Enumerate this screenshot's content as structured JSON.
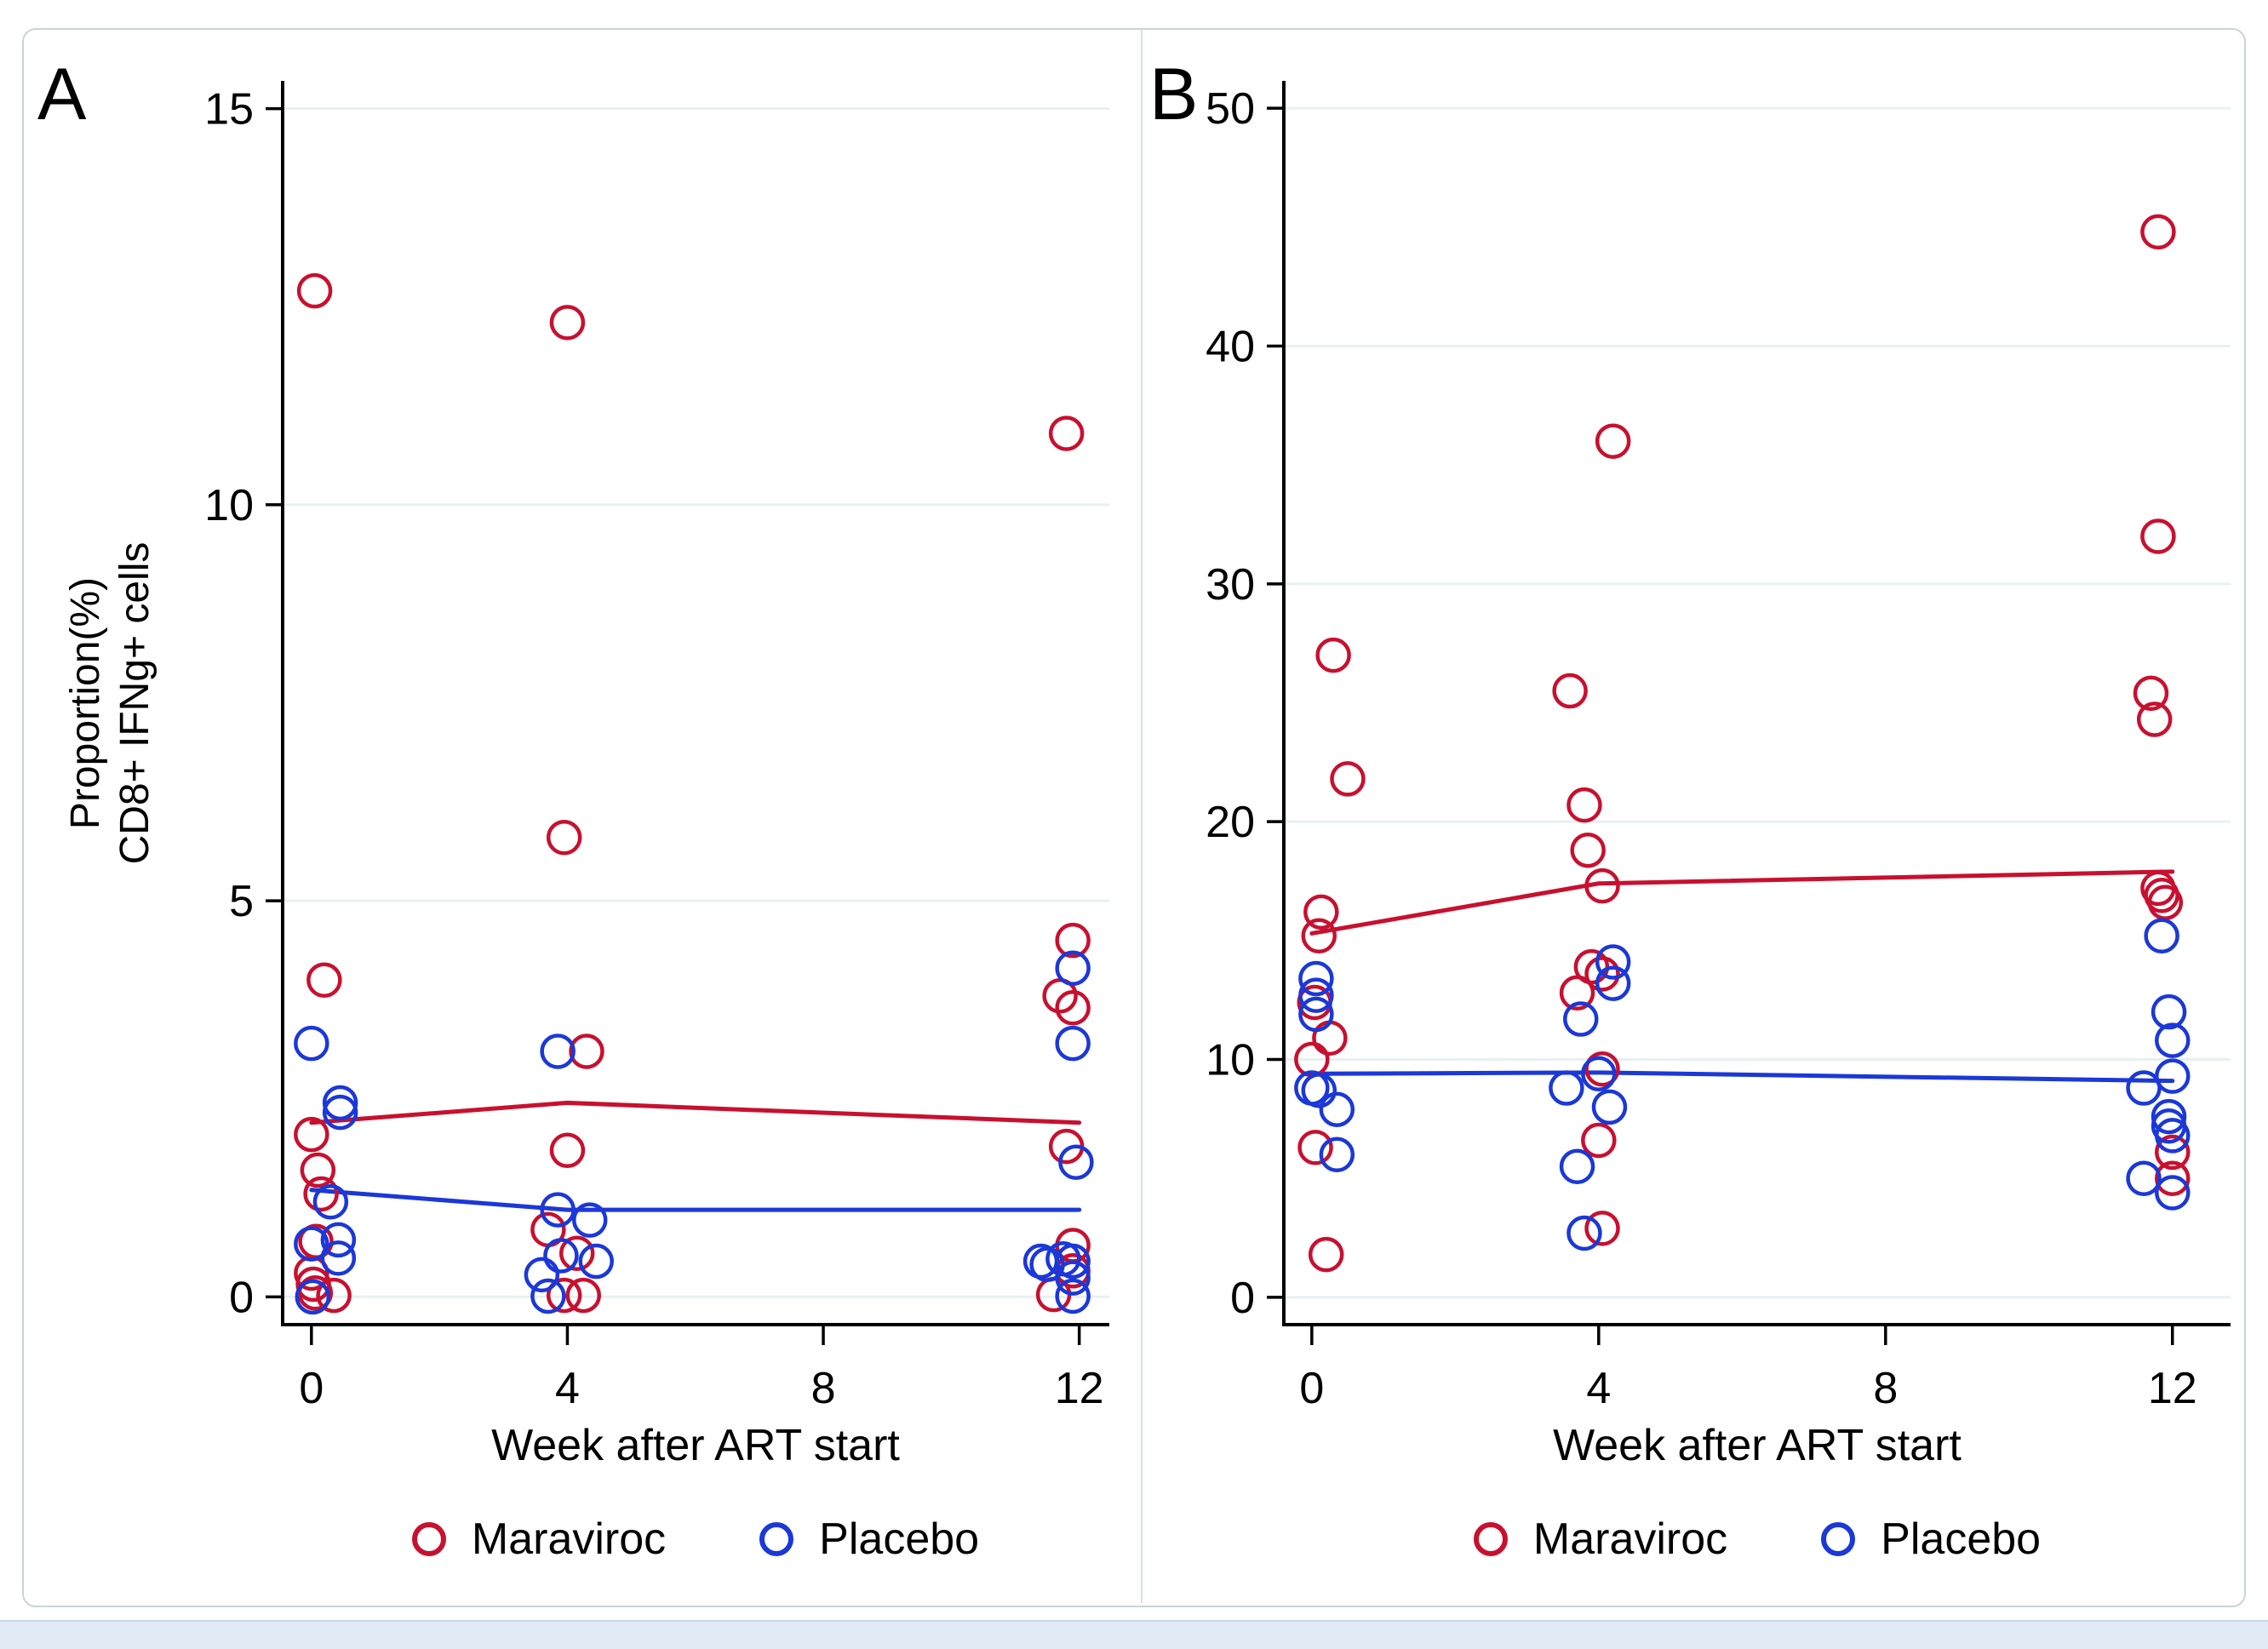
{
  "figure": {
    "panel_letters": [
      "A",
      "B"
    ],
    "xlabel": "Week after ART start",
    "ylabel_lines": [
      "Proportion(%)",
      "CD8+ IFNg+ cells"
    ],
    "legend": {
      "items": [
        {
          "label": "Maraviroc",
          "color": "#C8102F"
        },
        {
          "label": "Placebo",
          "color": "#1B38D8"
        }
      ]
    },
    "colors": {
      "maraviroc": "#C8102F",
      "placebo": "#1B38D8",
      "gridline": "#e7f0f2",
      "axis": "#000000",
      "border": "#cbd3d7",
      "bottom_strip": "#e0eaf4"
    }
  },
  "chart_data": [
    {
      "type": "scatter",
      "panel": "A",
      "xlabel": "Week after ART start",
      "ylabel": "Proportion(%) CD8+ IFNg+ cells",
      "xticks": [
        0,
        4,
        8,
        12
      ],
      "yticks": [
        0,
        5,
        10,
        15
      ],
      "xlim": [
        -0.45,
        12.47
      ],
      "ylim": [
        -0.35,
        15.35
      ],
      "grid": "horizontal",
      "legend_position": "bottom",
      "series": [
        {
          "name": "Maraviroc",
          "color": "#C8102F",
          "points": [
            [
              0.05,
              12.7
            ],
            [
              0.2,
              4.0
            ],
            [
              0.0,
              2.05
            ],
            [
              0.1,
              1.6
            ],
            [
              0.15,
              1.3
            ],
            [
              0.07,
              0.7
            ],
            [
              0.0,
              0.3
            ],
            [
              0.03,
              0.16
            ],
            [
              0.06,
              0.05
            ],
            [
              0.35,
              0.02
            ],
            [
              4.0,
              12.3
            ],
            [
              3.95,
              5.8
            ],
            [
              4.3,
              3.1
            ],
            [
              4.0,
              1.85
            ],
            [
              3.7,
              0.85
            ],
            [
              4.15,
              0.55
            ],
            [
              3.95,
              0.02
            ],
            [
              4.25,
              0.02
            ],
            [
              11.8,
              10.9
            ],
            [
              11.9,
              4.5
            ],
            [
              11.7,
              3.8
            ],
            [
              11.9,
              3.65
            ],
            [
              11.8,
              1.9
            ],
            [
              11.9,
              0.65
            ],
            [
              11.9,
              0.33
            ],
            [
              11.6,
              0.03
            ]
          ]
        },
        {
          "name": "Placebo",
          "color": "#1B38D8",
          "points": [
            [
              0.0,
              3.2
            ],
            [
              0.45,
              2.45
            ],
            [
              0.45,
              2.33
            ],
            [
              0.3,
              1.2
            ],
            [
              0.42,
              0.72
            ],
            [
              0.0,
              0.67
            ],
            [
              0.42,
              0.49
            ],
            [
              0.02,
              0.0
            ],
            [
              3.85,
              3.1
            ],
            [
              3.85,
              1.1
            ],
            [
              4.35,
              0.97
            ],
            [
              3.9,
              0.52
            ],
            [
              4.45,
              0.45
            ],
            [
              3.6,
              0.28
            ],
            [
              3.7,
              0.01
            ],
            [
              11.9,
              4.15
            ],
            [
              11.9,
              3.2
            ],
            [
              11.95,
              1.7
            ],
            [
              11.75,
              0.48
            ],
            [
              11.4,
              0.45
            ],
            [
              11.9,
              0.45
            ],
            [
              11.5,
              0.41
            ],
            [
              11.9,
              0.24
            ],
            [
              11.9,
              0.01
            ]
          ]
        }
      ],
      "trend_lines": [
        {
          "name": "Maraviroc",
          "color": "#C8102F",
          "points": [
            [
              0,
              2.2
            ],
            [
              4,
              2.45
            ],
            [
              12,
              2.2
            ]
          ]
        },
        {
          "name": "Placebo",
          "color": "#1B38D8",
          "points": [
            [
              0,
              1.35
            ],
            [
              4,
              1.1
            ],
            [
              12,
              1.1
            ]
          ]
        }
      ]
    },
    {
      "type": "scatter",
      "panel": "B",
      "xlabel": "Week after ART start",
      "ylabel": "",
      "xticks": [
        0,
        4,
        8,
        12
      ],
      "yticks": [
        0,
        10,
        20,
        30,
        40,
        50
      ],
      "xlim": [
        -0.39,
        12.81
      ],
      "ylim": [
        -1.15,
        51.15
      ],
      "grid": "horizontal",
      "legend_position": "bottom",
      "series": [
        {
          "name": "Maraviroc",
          "color": "#C8102F",
          "points": [
            [
              0.3,
              27.0
            ],
            [
              0.5,
              21.8
            ],
            [
              0.13,
              16.2
            ],
            [
              0.1,
              15.2
            ],
            [
              0.04,
              12.4
            ],
            [
              0.25,
              10.9
            ],
            [
              0.0,
              10.0
            ],
            [
              0.05,
              6.3
            ],
            [
              0.2,
              1.8
            ],
            [
              4.2,
              36.0
            ],
            [
              3.6,
              25.5
            ],
            [
              3.8,
              20.7
            ],
            [
              3.85,
              18.8
            ],
            [
              4.05,
              17.3
            ],
            [
              3.9,
              13.9
            ],
            [
              4.05,
              13.6
            ],
            [
              3.7,
              12.8
            ],
            [
              4.05,
              9.6
            ],
            [
              4.0,
              6.6
            ],
            [
              4.05,
              2.9
            ],
            [
              11.8,
              44.8
            ],
            [
              11.8,
              32.0
            ],
            [
              11.7,
              25.4
            ],
            [
              11.75,
              24.3
            ],
            [
              11.8,
              17.2
            ],
            [
              11.85,
              16.9
            ],
            [
              11.9,
              16.6
            ],
            [
              12.0,
              6.1
            ],
            [
              12.0,
              5.0
            ]
          ]
        },
        {
          "name": "Placebo",
          "color": "#1B38D8",
          "points": [
            [
              0.06,
              13.4
            ],
            [
              0.06,
              12.7
            ],
            [
              0.06,
              11.9
            ],
            [
              0.0,
              8.8
            ],
            [
              0.1,
              8.7
            ],
            [
              0.35,
              7.9
            ],
            [
              0.35,
              6.0
            ],
            [
              4.2,
              14.1
            ],
            [
              4.2,
              13.2
            ],
            [
              3.75,
              11.7
            ],
            [
              4.0,
              9.4
            ],
            [
              3.55,
              8.8
            ],
            [
              4.15,
              8.0
            ],
            [
              3.7,
              5.5
            ],
            [
              3.8,
              2.7
            ],
            [
              11.85,
              15.2
            ],
            [
              11.95,
              12.0
            ],
            [
              12.0,
              10.8
            ],
            [
              12.0,
              9.3
            ],
            [
              11.6,
              8.8
            ],
            [
              11.95,
              7.6
            ],
            [
              11.95,
              7.2
            ],
            [
              12.0,
              6.8
            ],
            [
              11.6,
              5.0
            ],
            [
              12.0,
              4.4
            ]
          ]
        }
      ],
      "trend_lines": [
        {
          "name": "Maraviroc",
          "color": "#C8102F",
          "points": [
            [
              0,
              15.3
            ],
            [
              4,
              17.4
            ],
            [
              12,
              17.9
            ]
          ]
        },
        {
          "name": "Placebo",
          "color": "#1B38D8",
          "points": [
            [
              0,
              9.4
            ],
            [
              4,
              9.45
            ],
            [
              12,
              9.1
            ]
          ]
        }
      ]
    }
  ]
}
